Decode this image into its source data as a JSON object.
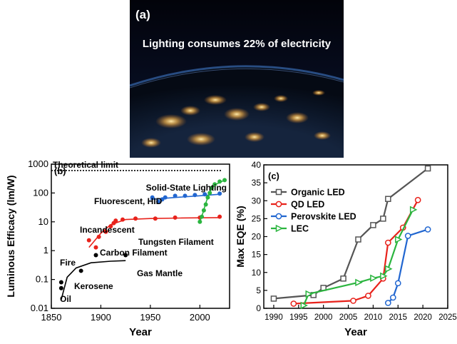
{
  "panel_a": {
    "label": "(a)",
    "caption": "Lighting consumes 22% of electricity"
  },
  "chart_data": [
    {
      "type": "scatter",
      "panel_label": "(b)",
      "xlabel": "Year",
      "ylabel": "Luminous Efficacy (lm/W)",
      "xlim": [
        1850,
        2030
      ],
      "ylim": [
        0.01,
        1000
      ],
      "yscale": "log",
      "xticks": [
        1850,
        1900,
        1950,
        2000
      ],
      "yticks": [
        0.01,
        0.1,
        1,
        10,
        100,
        1000
      ],
      "yticklabels": [
        "0.01",
        "0.1",
        "1",
        "10",
        "100",
        "1000"
      ],
      "theoretical_limit": {
        "label": "Theoretical limit",
        "value": 600
      },
      "annotations": [
        "Fire",
        "Oil",
        "Kerosene",
        "Carbon Filament",
        "Gas Mantle",
        "Incandescent",
        "Tungsten Filament",
        "Fluorescent, HID",
        "Solid-State Lighting"
      ],
      "series": [
        {
          "color": "#000000",
          "points": [
            [
              1860,
              0.05
            ],
            [
              1860,
              0.08
            ],
            [
              1880,
              0.2
            ],
            [
              1895,
              0.7
            ],
            [
              1925,
              0.7
            ]
          ],
          "fit": [
            [
              1860,
              0.02
            ],
            [
              1866,
              0.12
            ],
            [
              1875,
              0.25
            ],
            [
              1890,
              0.38
            ],
            [
              1910,
              0.43
            ],
            [
              1925,
              0.45
            ]
          ]
        },
        {
          "color": "#e8221b",
          "points": [
            [
              1888,
              2.3
            ],
            [
              1895,
              1.3
            ],
            [
              1898,
              3
            ],
            [
              1905,
              4.5
            ],
            [
              1910,
              7
            ],
            [
              1913,
              9
            ],
            [
              1915,
              11
            ],
            [
              1922,
              12
            ],
            [
              1935,
              13
            ],
            [
              1955,
              13
            ],
            [
              1975,
              14
            ],
            [
              2000,
              14
            ],
            [
              2020,
              15
            ]
          ],
          "fit": [
            [
              1888,
              1.3
            ],
            [
              1900,
              4
            ],
            [
              1910,
              8
            ],
            [
              1925,
              12
            ],
            [
              1950,
              13
            ],
            [
              1980,
              13.5
            ],
            [
              2020,
              14
            ]
          ]
        },
        {
          "color": "#2166d0",
          "points": [
            [
              1952,
              70
            ],
            [
              1958,
              50
            ],
            [
              1962,
              60
            ],
            [
              1965,
              70
            ],
            [
              1975,
              80
            ],
            [
              1985,
              80
            ],
            [
              1995,
              85
            ],
            [
              2005,
              90
            ],
            [
              2020,
              95
            ]
          ],
          "fit": [
            [
              1950,
              60
            ],
            [
              1975,
              70
            ],
            [
              2000,
              80
            ],
            [
              2020,
              90
            ]
          ]
        },
        {
          "color": "#2bb53f",
          "points": [
            [
              2000,
              10
            ],
            [
              2002,
              15
            ],
            [
              2004,
              25
            ],
            [
              2006,
              40
            ],
            [
              2008,
              70
            ],
            [
              2010,
              100
            ],
            [
              2012,
              150
            ],
            [
              2015,
              200
            ],
            [
              2020,
              250
            ],
            [
              2025,
              280
            ]
          ],
          "fit": [
            [
              2000,
              10
            ],
            [
              2003,
              20
            ],
            [
              2006,
              45
            ],
            [
              2010,
              110
            ],
            [
              2015,
              190
            ],
            [
              2025,
              280
            ]
          ]
        }
      ]
    },
    {
      "type": "line",
      "panel_label": "(c)",
      "xlabel": "Year",
      "ylabel": "Max EQE (%)",
      "xlim": [
        1988,
        2025
      ],
      "ylim": [
        0,
        40
      ],
      "xticks": [
        1990,
        1995,
        2000,
        2005,
        2010,
        2015,
        2020,
        2025
      ],
      "yticks": [
        0,
        5,
        10,
        15,
        20,
        25,
        30,
        35,
        40
      ],
      "legend_position": "top-left",
      "series": [
        {
          "name": "Organic LED",
          "color": "#555555",
          "marker": "square",
          "x": [
            1990,
            1998,
            2000,
            2004,
            2007,
            2010,
            2012,
            2013,
            2021
          ],
          "y": [
            2.7,
            3.7,
            5.7,
            8.3,
            19.2,
            23.2,
            25,
            30.5,
            39
          ]
        },
        {
          "name": "QD LED",
          "color": "#e8221b",
          "marker": "circle",
          "x": [
            1994,
            2006,
            2009,
            2012,
            2013,
            2016,
            2019
          ],
          "y": [
            1.3,
            2.1,
            3.5,
            8.3,
            18.3,
            22.5,
            30.2
          ]
        },
        {
          "name": "Perovskite LED",
          "color": "#2166d0",
          "marker": "circle",
          "x": [
            2013,
            2014,
            2015,
            2017,
            2021
          ],
          "y": [
            1.5,
            3,
            7,
            20.2,
            22
          ]
        },
        {
          "name": "LEC",
          "color": "#2bb53f",
          "marker": "triangle",
          "x": [
            1996,
            1997,
            2007,
            2010,
            2012,
            2013,
            2015,
            2018
          ],
          "y": [
            0.8,
            4,
            7.2,
            8.4,
            9,
            11,
            19.2,
            27.5
          ]
        }
      ]
    }
  ]
}
